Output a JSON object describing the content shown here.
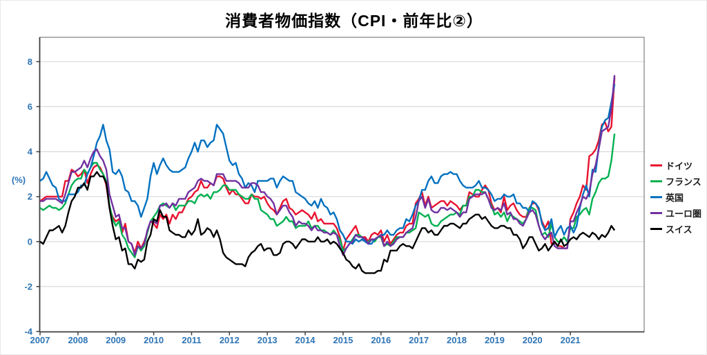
{
  "title": "消費者物価指数（CPI・前年比②）",
  "y_axis": {
    "unit_label": "(%)",
    "ticks": [
      8,
      6,
      4,
      2,
      0,
      -2,
      -4
    ],
    "tick_color": "#2e75b6"
  },
  "x_axis": {
    "years": [
      2007,
      2008,
      2009,
      2010,
      2011,
      2012,
      2013,
      2014,
      2015,
      2016,
      2017,
      2018,
      2019,
      2020,
      2021
    ],
    "tick_color": "#2e75b6"
  },
  "chart_data": {
    "type": "line",
    "title": "消費者物価指数（CPI・前年比②）",
    "xlabel": "",
    "ylabel": "(%)",
    "ylim": [
      -4,
      9
    ],
    "grid": true,
    "legend_position": "right",
    "x_start": "2007-01",
    "x_end": "2022-03",
    "x_frequency": "monthly",
    "series": [
      {
        "name": "ドイツ",
        "color": "#e8112d",
        "values": [
          1.8,
          1.9,
          2.0,
          2.0,
          2.0,
          2.0,
          2.0,
          2.0,
          2.7,
          2.7,
          3.2,
          3.1,
          2.9,
          3.0,
          3.2,
          2.6,
          3.0,
          3.3,
          3.4,
          3.3,
          3.0,
          2.5,
          1.5,
          1.1,
          0.9,
          1.0,
          0.4,
          0.8,
          0.0,
          -0.1,
          -0.5,
          0.0,
          -0.3,
          0.0,
          0.4,
          0.9,
          0.8,
          0.6,
          1.2,
          1.0,
          1.2,
          0.8,
          1.2,
          1.0,
          1.3,
          1.3,
          1.6,
          1.9,
          2.0,
          2.2,
          2.3,
          2.7,
          2.4,
          2.4,
          2.6,
          2.5,
          2.9,
          2.9,
          2.8,
          2.4,
          2.1,
          2.3,
          2.1,
          2.1,
          1.9,
          1.7,
          1.7,
          2.1,
          2.0,
          2.0,
          1.9,
          2.0,
          1.7,
          1.5,
          1.4,
          1.2,
          1.5,
          1.8,
          1.9,
          1.5,
          1.4,
          1.2,
          1.3,
          1.4,
          1.3,
          1.2,
          1.0,
          1.3,
          0.9,
          1.0,
          0.8,
          0.8,
          0.8,
          0.8,
          0.6,
          0.2,
          -0.4,
          0.1,
          0.3,
          0.5,
          0.7,
          0.3,
          0.2,
          0.2,
          0.0,
          0.3,
          0.4,
          0.3,
          0.5,
          0.0,
          0.3,
          -0.1,
          0.1,
          0.3,
          0.4,
          0.4,
          0.7,
          0.8,
          0.8,
          1.7,
          1.9,
          2.2,
          1.6,
          2.0,
          1.5,
          1.6,
          1.7,
          1.8,
          1.8,
          1.6,
          1.8,
          1.7,
          1.6,
          1.4,
          1.6,
          1.6,
          2.2,
          2.1,
          2.0,
          2.0,
          2.3,
          2.5,
          2.3,
          1.7,
          1.4,
          1.5,
          1.3,
          2.0,
          1.4,
          1.6,
          1.7,
          1.4,
          1.2,
          1.1,
          1.1,
          1.5,
          1.7,
          1.7,
          1.4,
          0.9,
          0.6,
          0.9,
          -0.1,
          0.0,
          -0.2,
          -0.2,
          -0.3,
          -0.3,
          1.0,
          1.3,
          1.7,
          2.0,
          2.5,
          2.3,
          3.8,
          3.9,
          4.1,
          4.5,
          5.2,
          5.3,
          4.9,
          5.1,
          7.3
        ]
      },
      {
        "name": "フランス",
        "color": "#00b050",
        "values": [
          1.5,
          1.4,
          1.5,
          1.6,
          1.5,
          1.5,
          1.4,
          1.5,
          1.7,
          2.1,
          2.5,
          2.7,
          2.8,
          2.8,
          3.2,
          3.0,
          3.3,
          3.5,
          3.5,
          3.2,
          3.0,
          2.7,
          1.6,
          1.0,
          0.7,
          0.9,
          0.3,
          0.1,
          -0.3,
          -0.5,
          -0.7,
          -0.2,
          -0.4,
          -0.2,
          0.4,
          0.9,
          1.1,
          1.3,
          1.6,
          1.7,
          1.6,
          1.5,
          1.7,
          1.4,
          1.6,
          1.6,
          1.6,
          1.8,
          1.8,
          1.7,
          2.0,
          2.1,
          2.0,
          2.1,
          1.9,
          2.2,
          2.2,
          2.3,
          2.5,
          2.5,
          2.3,
          2.3,
          2.3,
          2.1,
          2.0,
          1.9,
          1.9,
          2.1,
          1.9,
          1.9,
          1.4,
          1.3,
          1.2,
          1.0,
          1.0,
          0.7,
          0.8,
          0.9,
          1.1,
          0.9,
          0.9,
          0.6,
          0.7,
          0.7,
          0.7,
          0.9,
          0.6,
          0.7,
          0.7,
          0.5,
          0.5,
          0.4,
          0.3,
          0.5,
          0.3,
          0.1,
          -0.4,
          -0.3,
          -0.1,
          0.1,
          0.3,
          0.3,
          0.2,
          0.0,
          0.0,
          0.1,
          0.0,
          0.2,
          0.2,
          -0.2,
          -0.1,
          -0.2,
          0.0,
          0.2,
          0.2,
          0.2,
          0.4,
          0.4,
          0.5,
          0.6,
          1.3,
          1.2,
          1.1,
          1.2,
          0.8,
          0.7,
          0.7,
          0.9,
          1.0,
          1.1,
          1.2,
          1.2,
          1.3,
          1.2,
          1.6,
          1.6,
          2.0,
          2.0,
          2.3,
          2.3,
          2.2,
          2.2,
          1.9,
          1.6,
          1.2,
          1.3,
          1.1,
          1.3,
          0.9,
          1.2,
          1.1,
          1.0,
          0.9,
          0.8,
          1.0,
          1.5,
          1.5,
          1.4,
          0.7,
          0.3,
          0.4,
          0.2,
          0.8,
          0.2,
          0.0,
          0.0,
          0.2,
          0.0,
          0.6,
          0.6,
          1.1,
          1.2,
          1.4,
          1.5,
          1.2,
          1.9,
          2.2,
          2.6,
          2.8,
          2.8,
          2.9,
          3.6,
          4.8
        ]
      },
      {
        "name": "英国",
        "color": "#0070c0",
        "values": [
          2.7,
          2.8,
          3.1,
          2.8,
          2.5,
          2.4,
          1.9,
          1.8,
          1.8,
          2.1,
          2.1,
          2.1,
          2.2,
          2.5,
          2.5,
          3.0,
          3.3,
          3.8,
          4.4,
          4.7,
          5.2,
          4.5,
          4.1,
          3.1,
          3.0,
          3.2,
          2.9,
          2.3,
          2.2,
          1.8,
          1.8,
          1.6,
          1.1,
          1.5,
          1.9,
          2.9,
          3.5,
          3.0,
          3.4,
          3.7,
          3.4,
          3.2,
          3.1,
          3.1,
          3.1,
          3.2,
          3.3,
          3.7,
          4.0,
          4.4,
          4.0,
          4.5,
          4.5,
          4.2,
          4.4,
          4.5,
          5.2,
          5.0,
          4.8,
          4.2,
          3.6,
          3.4,
          3.5,
          3.0,
          2.8,
          2.4,
          2.6,
          2.5,
          2.2,
          2.7,
          2.7,
          2.7,
          2.7,
          2.8,
          2.8,
          2.4,
          2.7,
          2.9,
          2.8,
          2.7,
          2.7,
          2.2,
          2.1,
          2.0,
          1.9,
          1.7,
          1.6,
          1.8,
          1.5,
          1.9,
          1.6,
          1.5,
          1.2,
          1.3,
          1.0,
          0.5,
          0.3,
          0.0,
          0.0,
          -0.1,
          0.1,
          0.0,
          0.1,
          0.0,
          -0.1,
          -0.1,
          0.1,
          0.2,
          0.3,
          0.3,
          0.5,
          0.3,
          0.3,
          0.5,
          0.6,
          0.6,
          1.0,
          0.9,
          1.2,
          1.6,
          1.8,
          2.3,
          2.3,
          2.7,
          2.9,
          2.6,
          2.6,
          2.9,
          3.0,
          3.0,
          3.1,
          3.0,
          3.0,
          2.7,
          2.5,
          2.4,
          2.4,
          2.4,
          2.5,
          2.7,
          2.4,
          2.4,
          2.3,
          2.1,
          1.8,
          1.9,
          1.9,
          2.1,
          2.0,
          2.0,
          2.1,
          1.7,
          1.7,
          1.5,
          1.5,
          1.3,
          1.8,
          1.7,
          1.5,
          0.8,
          0.5,
          0.6,
          1.0,
          0.2,
          0.5,
          0.7,
          0.3,
          0.6,
          0.7,
          0.4,
          0.7,
          1.5,
          2.1,
          2.5,
          2.0,
          3.2,
          3.1,
          4.2,
          5.1,
          5.4,
          5.5,
          6.2,
          7.0
        ]
      },
      {
        "name": "ユーロ圏",
        "color": "#7030a0",
        "values": [
          1.8,
          1.8,
          1.9,
          1.9,
          1.9,
          1.9,
          1.8,
          1.7,
          2.1,
          2.6,
          3.1,
          3.1,
          3.2,
          3.3,
          3.6,
          3.3,
          3.7,
          4.0,
          4.1,
          3.8,
          3.6,
          3.2,
          2.1,
          1.6,
          1.1,
          1.2,
          0.6,
          0.6,
          0.0,
          -0.1,
          -0.6,
          -0.2,
          -0.3,
          -0.1,
          0.5,
          0.9,
          0.9,
          0.8,
          1.6,
          1.6,
          1.7,
          1.5,
          1.7,
          1.6,
          1.9,
          1.9,
          1.9,
          2.2,
          2.3,
          2.4,
          2.7,
          2.8,
          2.7,
          2.7,
          2.6,
          2.5,
          3.0,
          3.0,
          3.0,
          2.7,
          2.7,
          2.7,
          2.7,
          2.6,
          2.4,
          2.4,
          2.4,
          2.6,
          2.6,
          2.5,
          2.2,
          2.2,
          2.0,
          1.9,
          1.7,
          1.2,
          1.4,
          1.6,
          1.6,
          1.3,
          1.1,
          0.7,
          0.9,
          0.8,
          0.8,
          0.7,
          0.5,
          0.7,
          0.5,
          0.5,
          0.4,
          0.4,
          0.3,
          0.4,
          0.3,
          -0.2,
          -0.6,
          -0.3,
          -0.1,
          0.0,
          0.3,
          0.2,
          0.2,
          0.1,
          -0.1,
          0.1,
          0.1,
          0.2,
          0.3,
          -0.2,
          0.0,
          -0.2,
          -0.1,
          0.1,
          0.2,
          0.2,
          0.4,
          0.5,
          0.6,
          1.1,
          1.8,
          2.0,
          1.5,
          1.9,
          1.4,
          1.3,
          1.3,
          1.5,
          1.5,
          1.4,
          1.5,
          1.4,
          1.3,
          1.1,
          1.3,
          1.3,
          1.9,
          2.0,
          2.1,
          2.1,
          2.1,
          2.2,
          1.9,
          1.5,
          1.4,
          1.5,
          1.4,
          1.7,
          1.2,
          1.3,
          1.0,
          1.0,
          0.8,
          0.7,
          1.0,
          1.3,
          1.4,
          1.2,
          0.7,
          0.3,
          0.1,
          0.3,
          0.4,
          -0.2,
          -0.3,
          -0.3,
          -0.3,
          -0.3,
          0.9,
          0.9,
          1.3,
          1.6,
          2.0,
          1.9,
          2.2,
          3.0,
          3.4,
          4.1,
          4.9,
          5.0,
          5.1,
          5.9,
          7.4
        ]
      },
      {
        "name": "スイス",
        "color": "#000000",
        "values": [
          0.0,
          -0.1,
          0.2,
          0.5,
          0.5,
          0.6,
          0.7,
          0.4,
          0.7,
          1.3,
          1.8,
          2.0,
          2.4,
          2.4,
          2.6,
          2.3,
          2.9,
          2.9,
          3.1,
          2.9,
          2.9,
          2.6,
          1.5,
          0.7,
          0.1,
          0.2,
          -0.4,
          -0.3,
          -1.0,
          -1.0,
          -1.2,
          -0.8,
          -0.9,
          -0.8,
          0.0,
          0.3,
          1.0,
          0.9,
          1.4,
          1.1,
          1.1,
          0.5,
          0.4,
          0.3,
          0.3,
          0.2,
          0.2,
          0.5,
          0.3,
          0.5,
          1.0,
          0.3,
          0.4,
          0.6,
          0.5,
          0.2,
          0.5,
          0.1,
          -0.5,
          -0.7,
          -0.8,
          -0.9,
          -1.0,
          -1.0,
          -1.0,
          -1.1,
          -0.7,
          -0.5,
          -0.4,
          -0.2,
          -0.1,
          -0.4,
          -0.3,
          -0.3,
          -0.6,
          -0.6,
          -0.5,
          -0.1,
          0.0,
          0.0,
          -0.1,
          -0.3,
          -0.1,
          0.1,
          0.1,
          0.0,
          0.0,
          0.0,
          0.2,
          0.0,
          0.0,
          0.1,
          -0.1,
          0.0,
          -0.1,
          -0.3,
          -0.5,
          -0.8,
          -0.9,
          -1.1,
          -1.2,
          -1.0,
          -1.3,
          -1.4,
          -1.4,
          -1.4,
          -1.4,
          -1.3,
          -1.3,
          -0.8,
          -0.9,
          -0.4,
          -0.4,
          -0.4,
          -0.2,
          -0.1,
          -0.2,
          -0.2,
          -0.3,
          0.0,
          0.3,
          0.6,
          0.6,
          0.4,
          0.5,
          0.3,
          0.3,
          0.5,
          0.7,
          0.7,
          0.8,
          0.8,
          0.7,
          0.6,
          0.8,
          0.8,
          1.0,
          1.1,
          1.2,
          1.2,
          1.0,
          1.1,
          0.9,
          0.7,
          0.6,
          0.6,
          0.7,
          0.7,
          0.6,
          0.6,
          0.3,
          0.3,
          0.1,
          -0.3,
          -0.1,
          0.2,
          0.2,
          -0.1,
          -0.4,
          -0.3,
          -0.1,
          -0.4,
          -0.2,
          0.0,
          -0.2,
          0.1,
          -0.2,
          -0.1,
          0.1,
          0.2,
          0.1,
          0.3,
          0.4,
          0.3,
          0.2,
          0.4,
          0.3,
          0.1,
          0.3,
          0.2,
          0.4,
          0.7,
          0.5
        ]
      }
    ]
  },
  "colors": {
    "axis_text": "#2e75b6",
    "gridline": "#d9d9d9",
    "plot_frame": "#7f7f7f",
    "axis_line": "#404040"
  }
}
